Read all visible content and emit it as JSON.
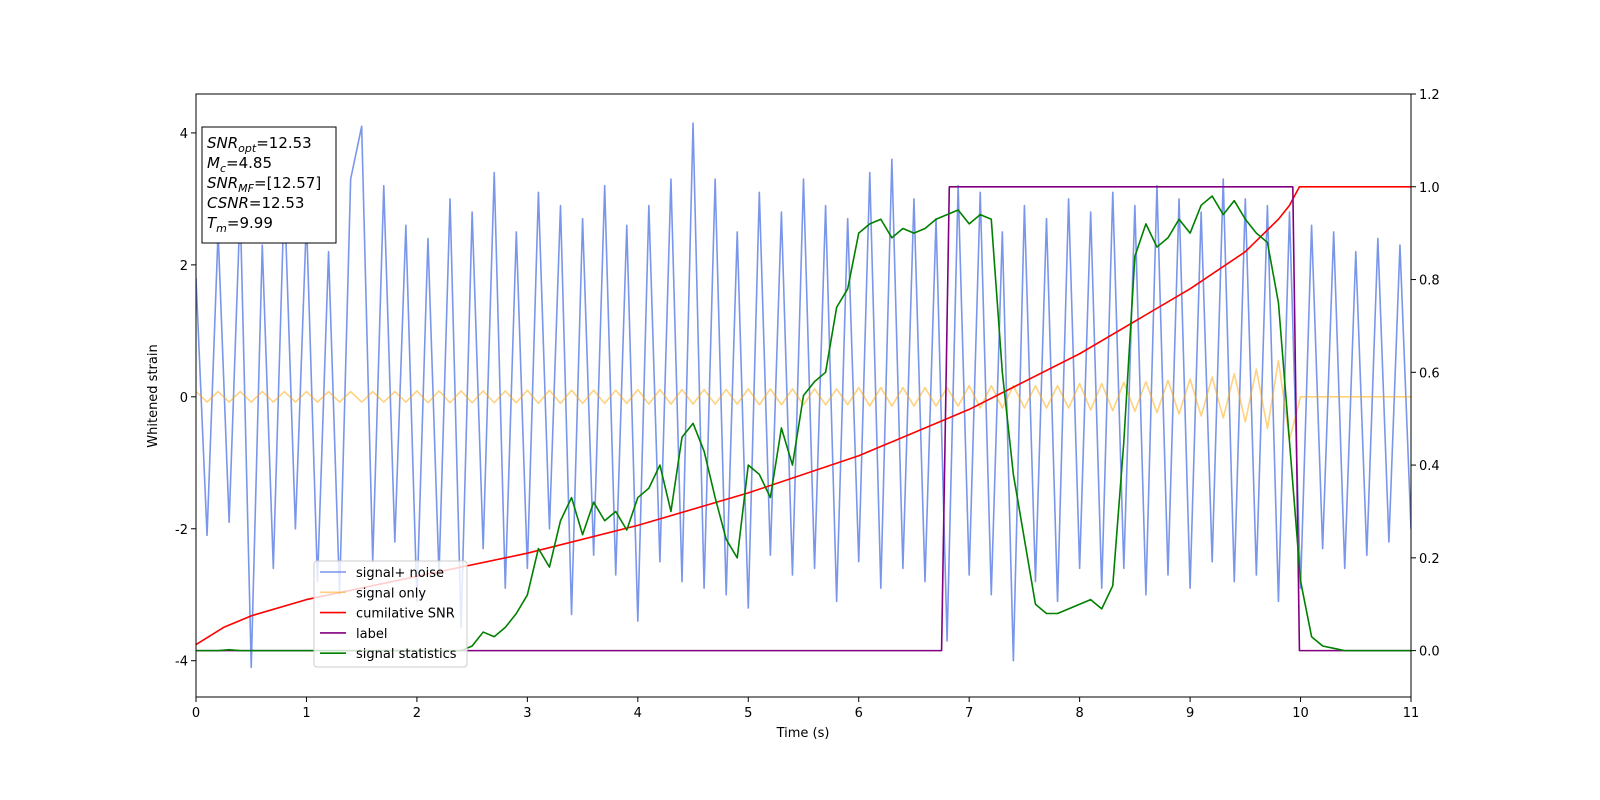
{
  "chart_data": {
    "type": "line",
    "xlabel": "Time (s)",
    "ylabel": "Whitened strain",
    "xlim": [
      0,
      11
    ],
    "xticks": [
      0,
      1,
      2,
      3,
      4,
      5,
      6,
      7,
      8,
      9,
      10,
      11
    ],
    "ylim": [
      -4.55,
      4.59
    ],
    "yticks": [
      -4,
      -2,
      0,
      2,
      4
    ],
    "y2lim": [
      -0.1,
      1.2
    ],
    "y2ticks": [
      {
        "value": 0,
        "label": "0.0"
      },
      0.2,
      0.4,
      0.6,
      0.8,
      {
        "value": 1,
        "label": "1.0"
      },
      1.2
    ],
    "grid": false,
    "legend": "lower left",
    "annotation": [
      {
        "name": "SNR",
        "sub": "opt",
        "text": "=12.53"
      },
      {
        "name": "M",
        "sub": "c",
        "text": "=4.85"
      },
      {
        "name": "SNR",
        "sub": "MF",
        "text": "=[12.57]"
      },
      {
        "name": "CSNR",
        "text": "=12.53"
      },
      {
        "name": "T",
        "sub": "m",
        "text": "=9.99"
      }
    ],
    "x": [
      0,
      0.1,
      0.2,
      0.3,
      0.4,
      0.5,
      0.6,
      0.7,
      0.8,
      0.9,
      1,
      1.1,
      1.2,
      1.3,
      1.4,
      1.5,
      1.6,
      1.7,
      1.8,
      1.9,
      2,
      2.1,
      2.2,
      2.3,
      2.4,
      2.5,
      2.6,
      2.7,
      2.8,
      2.9,
      3,
      3.1,
      3.2,
      3.3,
      3.4,
      3.5,
      3.6,
      3.7,
      3.8,
      3.9,
      4,
      4.1,
      4.2,
      4.3,
      4.4,
      4.5,
      4.6,
      4.7,
      4.8,
      4.9,
      5,
      5.1,
      5.2,
      5.3,
      5.4,
      5.5,
      5.6,
      5.7,
      5.8,
      5.9,
      6,
      6.1,
      6.2,
      6.3,
      6.4,
      6.5,
      6.6,
      6.7,
      6.8,
      6.9,
      7,
      7.1,
      7.2,
      7.3,
      7.4,
      7.5,
      7.6,
      7.7,
      7.8,
      7.9,
      8,
      8.1,
      8.2,
      8.3,
      8.4,
      8.5,
      8.6,
      8.7,
      8.8,
      8.9,
      9,
      9.1,
      9.2,
      9.3,
      9.4,
      9.5,
      9.6,
      9.7,
      9.8,
      9.9,
      10,
      10.1,
      10.2,
      10.3,
      10.4,
      10.5,
      10.6,
      10.7,
      10.8,
      10.9,
      11
    ],
    "series": [
      {
        "name": "signal+ noise",
        "color": "#4169e1",
        "alpha": 0.7,
        "values": [
          1.8,
          -2.1,
          2.5,
          -1.9,
          2.9,
          -4.1,
          2.3,
          -2.6,
          3.1,
          -2.0,
          2.7,
          -2.8,
          2.2,
          -3.0,
          3.3,
          4.1,
          -2.5,
          3.2,
          -2.2,
          2.6,
          -3.1,
          2.4,
          -2.7,
          3.0,
          -3.5,
          2.8,
          -2.3,
          3.4,
          -2.9,
          2.5,
          -2.6,
          3.1,
          -2.0,
          2.9,
          -3.3,
          2.7,
          -2.4,
          3.2,
          -2.7,
          2.6,
          -3.4,
          2.9,
          -2.5,
          3.3,
          -2.8,
          4.15,
          -2.9,
          3.3,
          -3.0,
          2.5,
          -3.2,
          3.1,
          -2.4,
          2.8,
          -2.7,
          3.3,
          -2.6,
          2.9,
          -3.1,
          2.7,
          -2.5,
          3.4,
          -2.9,
          3.6,
          -2.6,
          3.0,
          -2.8,
          2.7,
          -3.7,
          3.2,
          -2.7,
          3.1,
          -3.0,
          2.5,
          -4.0,
          2.9,
          -2.8,
          2.7,
          -3.1,
          3.0,
          -2.6,
          2.8,
          -2.9,
          3.1,
          -2.6,
          2.9,
          -3.0,
          3.2,
          -2.7,
          3.0,
          -2.9,
          2.8,
          -2.5,
          3.3,
          -2.8,
          3.0,
          -2.7,
          2.9,
          -3.1,
          2.8,
          -2.9,
          2.6,
          -2.3,
          2.5,
          -2.6,
          2.2,
          -2.4,
          2.4,
          -2.2,
          2.3,
          -2.0
        ]
      },
      {
        "name": "signal only",
        "color": "#ffa500",
        "alpha": 0.5,
        "values": [
          0.08,
          -0.08,
          0.08,
          -0.08,
          0.08,
          -0.08,
          0.08,
          -0.08,
          0.08,
          -0.08,
          0.08,
          -0.08,
          0.08,
          -0.08,
          0.08,
          -0.08,
          0.08,
          -0.08,
          0.08,
          -0.08,
          0.09,
          -0.09,
          0.09,
          -0.09,
          0.09,
          -0.09,
          0.09,
          -0.09,
          0.09,
          -0.09,
          0.1,
          -0.1,
          0.1,
          -0.1,
          0.1,
          -0.1,
          0.1,
          -0.1,
          0.1,
          -0.1,
          0.11,
          -0.11,
          0.11,
          -0.11,
          0.11,
          -0.11,
          0.11,
          -0.11,
          0.11,
          -0.11,
          0.12,
          -0.12,
          0.12,
          -0.12,
          0.12,
          -0.12,
          0.12,
          -0.12,
          0.12,
          -0.12,
          0.14,
          -0.14,
          0.14,
          -0.14,
          0.14,
          -0.14,
          0.14,
          -0.14,
          0.14,
          -0.14,
          0.17,
          -0.17,
          0.17,
          -0.17,
          0.17,
          -0.17,
          0.17,
          -0.17,
          0.17,
          -0.17,
          0.2,
          -0.2,
          0.2,
          -0.21,
          0.22,
          -0.22,
          0.23,
          -0.24,
          0.25,
          -0.26,
          0.27,
          -0.29,
          0.3,
          -0.32,
          0.35,
          -0.38,
          0.42,
          -0.48,
          0.55,
          -0.65,
          0,
          0,
          0,
          0,
          0,
          0,
          0,
          0,
          0,
          0,
          0
        ]
      },
      {
        "name": "cumilative SNR",
        "color": "#ff0000",
        "axis": "y2",
        "x": [
          0,
          0.25,
          0.5,
          1,
          2,
          3,
          4,
          5,
          6,
          7,
          8,
          9,
          9.5,
          9.8,
          9.9,
          9.99,
          10,
          11
        ],
        "values": [
          0.013,
          0.05,
          0.075,
          0.11,
          0.16,
          0.21,
          0.27,
          0.34,
          0.42,
          0.52,
          0.64,
          0.78,
          0.86,
          0.93,
          0.96,
          1.0,
          1.0,
          1.0
        ]
      },
      {
        "name": "label",
        "color": "#800080",
        "axis": "y2",
        "x": [
          0,
          6.75,
          6.82,
          9.93,
          9.99,
          11
        ],
        "values": [
          0,
          0,
          1,
          1,
          0,
          0
        ]
      },
      {
        "name": "signal statistics",
        "color": "#008000",
        "axis": "y2",
        "values": [
          0,
          0,
          0,
          0.002,
          0,
          0,
          0,
          0,
          0,
          0,
          0,
          0,
          0,
          0,
          0,
          0,
          0,
          0,
          0,
          0,
          0,
          0,
          0,
          0,
          0,
          0.01,
          0.04,
          0.03,
          0.05,
          0.08,
          0.12,
          0.22,
          0.18,
          0.28,
          0.33,
          0.25,
          0.32,
          0.28,
          0.3,
          0.26,
          0.33,
          0.35,
          0.4,
          0.3,
          0.46,
          0.49,
          0.43,
          0.33,
          0.24,
          0.2,
          0.4,
          0.38,
          0.33,
          0.48,
          0.4,
          0.55,
          0.58,
          0.6,
          0.74,
          0.78,
          0.9,
          0.92,
          0.93,
          0.89,
          0.91,
          0.9,
          0.91,
          0.93,
          0.94,
          0.95,
          0.92,
          0.94,
          0.93,
          0.6,
          0.38,
          0.24,
          0.1,
          0.08,
          0.08,
          0.09,
          0.1,
          0.11,
          0.09,
          0.14,
          0.45,
          0.85,
          0.92,
          0.87,
          0.89,
          0.93,
          0.9,
          0.96,
          0.98,
          0.94,
          0.97,
          0.93,
          0.9,
          0.88,
          0.75,
          0.45,
          0.15,
          0.03,
          0.01,
          0.005,
          0,
          0,
          0,
          0,
          0,
          0,
          0
        ]
      }
    ]
  }
}
